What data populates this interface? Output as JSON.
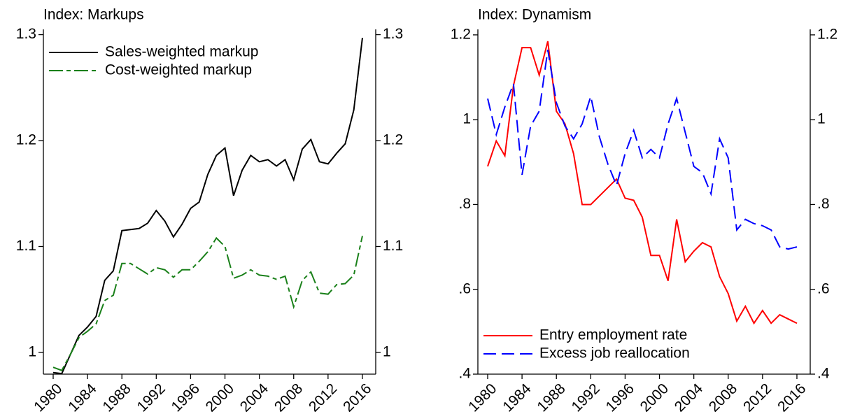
{
  "chart_data": [
    {
      "type": "line",
      "title": "Index: Markups",
      "x": [
        1980,
        1981,
        1982,
        1983,
        1984,
        1985,
        1986,
        1987,
        1988,
        1989,
        1990,
        1991,
        1992,
        1993,
        1994,
        1995,
        1996,
        1997,
        1998,
        1999,
        2000,
        2001,
        2002,
        2003,
        2004,
        2005,
        2006,
        2007,
        2008,
        2009,
        2010,
        2011,
        2012,
        2013,
        2014,
        2015,
        2016
      ],
      "series": [
        {
          "name": "Sales-weighted markup",
          "color": "#000000",
          "linestyle": "solid",
          "values": [
            0.981,
            0.98,
            0.998,
            1.016,
            1.024,
            1.034,
            1.068,
            1.077,
            1.115,
            1.116,
            1.117,
            1.122,
            1.134,
            1.124,
            1.109,
            1.121,
            1.136,
            1.142,
            1.168,
            1.186,
            1.193,
            1.148,
            1.172,
            1.186,
            1.18,
            1.182,
            1.176,
            1.182,
            1.163,
            1.192,
            1.201,
            1.18,
            1.178,
            1.188,
            1.197,
            1.229,
            1.297
          ]
        },
        {
          "name": "Cost-weighted markup",
          "color": "#1a801a",
          "linestyle": "dashdot",
          "values": [
            0.986,
            0.983,
            0.998,
            1.014,
            1.02,
            1.027,
            1.049,
            1.054,
            1.084,
            1.084,
            1.079,
            1.074,
            1.08,
            1.078,
            1.071,
            1.078,
            1.078,
            1.086,
            1.095,
            1.108,
            1.1,
            1.07,
            1.073,
            1.078,
            1.073,
            1.072,
            1.069,
            1.072,
            1.043,
            1.068,
            1.076,
            1.056,
            1.055,
            1.064,
            1.065,
            1.073,
            1.11
          ]
        }
      ],
      "xlim": [
        1978.86,
        2017.55
      ],
      "xticks": [
        1980,
        1984,
        1988,
        1992,
        1996,
        2000,
        2004,
        2008,
        2012,
        2016
      ],
      "ylim": [
        0.9795,
        1.305
      ],
      "yticks": [
        1,
        1.1,
        1.2,
        1.3
      ],
      "legend": "upper left"
    },
    {
      "type": "line",
      "title": "Index: Dynamism",
      "x": [
        1980,
        1981,
        1982,
        1983,
        1984,
        1985,
        1986,
        1987,
        1988,
        1989,
        1990,
        1991,
        1992,
        1993,
        1994,
        1995,
        1996,
        1997,
        1998,
        1999,
        2000,
        2001,
        2002,
        2003,
        2004,
        2005,
        2006,
        2007,
        2008,
        2009,
        2010,
        2011,
        2012,
        2013,
        2014,
        2015,
        2016
      ],
      "series": [
        {
          "name": "Entry employment rate",
          "color": "#ff0000",
          "linestyle": "solid",
          "values": [
            0.89,
            0.95,
            0.915,
            1.08,
            1.17,
            1.17,
            1.105,
            1.185,
            1.02,
            0.99,
            0.92,
            0.8,
            0.8,
            0.82,
            0.84,
            0.86,
            0.815,
            0.81,
            0.77,
            0.68,
            0.68,
            0.62,
            0.765,
            0.665,
            0.69,
            0.71,
            0.7,
            0.63,
            0.59,
            0.525,
            0.56,
            0.52,
            0.55,
            0.52,
            0.54,
            0.53,
            0.52
          ]
        },
        {
          "name": "Excess job reallocation",
          "color": "#0000ff",
          "linestyle": "dashed",
          "values": [
            1.05,
            0.965,
            1.03,
            1.085,
            0.87,
            0.985,
            1.02,
            1.165,
            1.04,
            0.985,
            0.955,
            0.99,
            1.055,
            0.96,
            0.895,
            0.845,
            0.92,
            0.975,
            0.91,
            0.93,
            0.91,
            0.99,
            1.05,
            0.97,
            0.89,
            0.875,
            0.825,
            0.955,
            0.91,
            0.74,
            0.765,
            0.755,
            0.75,
            0.74,
            0.7,
            0.695,
            0.7
          ]
        }
      ],
      "xlim": [
        1978.86,
        2017.55
      ],
      "xticks": [
        1980,
        1984,
        1988,
        1992,
        1996,
        2000,
        2004,
        2008,
        2012,
        2016
      ],
      "ylim": [
        0.4,
        1.213
      ],
      "yticks": [
        {
          "value": 0.4,
          "label": ".4"
        },
        {
          "value": 0.6,
          "label": ".6"
        },
        {
          "value": 0.8,
          "label": ".8"
        },
        1,
        1.2
      ],
      "legend": "lower left"
    }
  ]
}
